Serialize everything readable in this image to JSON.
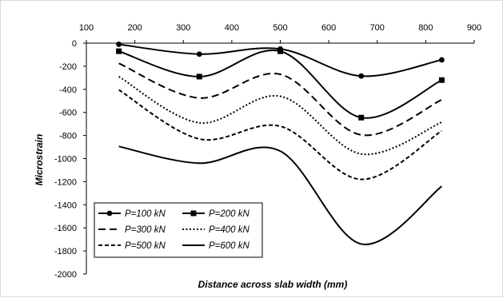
{
  "chart_data": {
    "type": "line",
    "title": "",
    "xlabel": "Distance across slab width (mm)",
    "ylabel": "Microstrain",
    "xlim": [
      100,
      900
    ],
    "ylim": [
      -2000,
      0
    ],
    "x_ticks": [
      "100",
      "200",
      "300",
      "400",
      "500",
      "600",
      "700",
      "800",
      "900"
    ],
    "y_ticks": [
      "0",
      "-200",
      "-400",
      "-600",
      "-800",
      "-1000",
      "-1200",
      "-1400",
      "-1600",
      "-1800",
      "-2000"
    ],
    "x_axis_position": "top",
    "grid": false,
    "smoothed": true,
    "legend_position": "bottom-left",
    "x": [
      167,
      333,
      500,
      667,
      833
    ],
    "series": [
      {
        "name": "P=100 kN",
        "style": "solid",
        "marker": "circle",
        "color": "#000000",
        "values": [
          -10,
          -95,
          -50,
          -285,
          -145
        ]
      },
      {
        "name": "P=200 kN",
        "style": "solid",
        "marker": "square",
        "color": "#000000",
        "values": [
          -70,
          -290,
          -70,
          -645,
          -320
        ]
      },
      {
        "name": "P=300 kN",
        "style": "long-dash",
        "marker": "none",
        "color": "#000000",
        "values": [
          -175,
          -475,
          -270,
          -795,
          -490
        ]
      },
      {
        "name": "P=400 kN",
        "style": "dotted",
        "marker": "none",
        "color": "#000000",
        "values": [
          -290,
          -690,
          -460,
          -960,
          -685
        ]
      },
      {
        "name": "P=500 kN",
        "style": "short-dash",
        "marker": "none",
        "color": "#000000",
        "values": [
          -405,
          -830,
          -720,
          -1180,
          -760
        ]
      },
      {
        "name": "P=600 kN",
        "style": "solid",
        "marker": "none",
        "color": "#000000",
        "values": [
          -895,
          -1040,
          -935,
          -1740,
          -1240
        ]
      }
    ]
  }
}
